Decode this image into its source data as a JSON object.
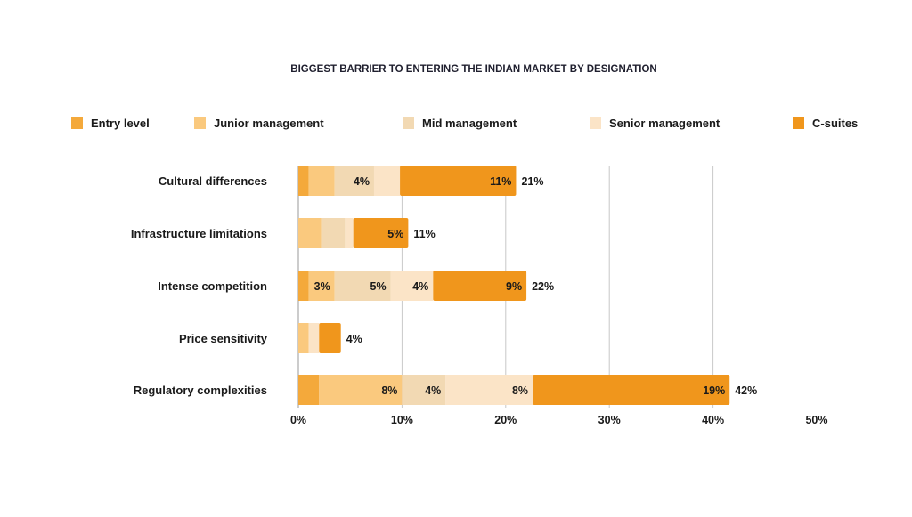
{
  "chart_data": {
    "type": "bar",
    "orientation": "horizontal",
    "stacked": true,
    "title": "BIGGEST BARRIER TO ENTERING THE INDIAN MARKET BY DESIGNATION",
    "xlabel": "",
    "ylabel": "",
    "xlim": [
      0,
      50
    ],
    "x_ticks": [
      "0%",
      "10%",
      "20%",
      "30%",
      "40%",
      "50%"
    ],
    "x_tick_values": [
      0,
      10,
      20,
      30,
      40,
      50
    ],
    "grid": "vertical",
    "legend_position": "top",
    "categories": [
      "Cultural differences",
      "Infrastructure limitations",
      "Intense competition",
      "Price sensitivity",
      "Regulatory complexities"
    ],
    "series": [
      {
        "name": "Entry level",
        "color": "#F4A93B",
        "values": [
          1,
          0,
          1,
          0,
          2
        ],
        "labels": [
          "",
          "",
          "",
          "",
          ""
        ]
      },
      {
        "name": "Junior management",
        "color": "#FAC97E",
        "values": [
          2.5,
          2.2,
          2.5,
          1,
          8
        ],
        "labels": [
          "",
          "",
          "3%",
          "",
          "8%"
        ]
      },
      {
        "name": "Mid management",
        "color": "#F2D9B3",
        "values": [
          3.8,
          2.3,
          5.4,
          0,
          4.2
        ],
        "labels": [
          "4%",
          "",
          "5%",
          "",
          "4%"
        ]
      },
      {
        "name": "Senior management",
        "color": "#FBE4C7",
        "values": [
          2.5,
          0.8,
          4.1,
          1,
          8.4
        ],
        "labels": [
          "",
          "",
          "4%",
          "",
          "8%"
        ]
      },
      {
        "name": "C-suites",
        "color": "#F0961C",
        "values": [
          11.2,
          5.3,
          9,
          2.1,
          19
        ],
        "labels": [
          "11%",
          "5%",
          "9%",
          "",
          "19%"
        ]
      }
    ],
    "totals": [
      21,
      11,
      22,
      4,
      42
    ],
    "total_labels": [
      "21%",
      "11%",
      "22%",
      "4%",
      "42%"
    ]
  }
}
